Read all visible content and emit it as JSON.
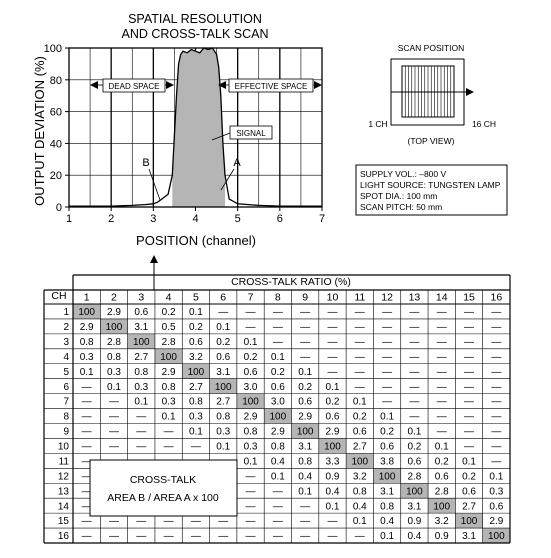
{
  "chart_data": [
    {
      "type": "line",
      "title": "SPATIAL RESOLUTION",
      "subtitle": "AND CROSS-TALK SCAN",
      "xlabel": "POSITION (channel)",
      "ylabel": "OUTPUT DEVIATION (%)",
      "xlim": [
        1,
        7
      ],
      "ylim": [
        0,
        100
      ],
      "x_ticks": [
        "1",
        "2",
        "3",
        "4",
        "5",
        "6",
        "7"
      ],
      "y_ticks": [
        "0",
        "20",
        "40",
        "60",
        "80",
        "100"
      ],
      "grid": true,
      "series": [
        {
          "x": [
            1.0,
            1.5,
            2.0,
            2.5,
            2.8,
            3.0,
            3.1,
            3.2,
            3.35,
            3.45,
            3.55,
            3.6,
            3.65,
            3.7,
            3.8,
            3.9,
            4.0,
            4.1,
            4.2,
            4.3,
            4.4,
            4.5,
            4.55,
            4.6,
            4.65,
            4.7,
            4.8,
            5.0,
            5.5,
            6.0,
            6.5,
            7.0
          ],
          "y": [
            0.5,
            0.5,
            0.5,
            1,
            1.5,
            2,
            3,
            5,
            8,
            20,
            70,
            90,
            96,
            98,
            97,
            99,
            98,
            97,
            100,
            99,
            100,
            96,
            88,
            70,
            40,
            20,
            5,
            2,
            1,
            0.5,
            0.5,
            0.5
          ]
        }
      ],
      "annotations": {
        "dead_space": "DEAD SPACE",
        "effective_space": "EFFECTIVE SPACE",
        "signal": "SIGNAL",
        "area_a": "A",
        "area_b": "B"
      }
    },
    {
      "type": "table",
      "title": "CROSS-TALK RATIO (%)",
      "row_header": "CH",
      "columns": [
        "1",
        "2",
        "3",
        "4",
        "5",
        "6",
        "7",
        "8",
        "9",
        "10",
        "11",
        "12",
        "13",
        "14",
        "15",
        "16"
      ],
      "rows": [
        [
          "1",
          "100",
          "2.9",
          "0.6",
          "0.2",
          "0.1",
          "—",
          "—",
          "—",
          "—",
          "—",
          "—",
          "—",
          "—",
          "—",
          "—",
          "—"
        ],
        [
          "2",
          "2.9",
          "100",
          "3.1",
          "0.5",
          "0.2",
          "0.1",
          "—",
          "—",
          "—",
          "—",
          "—",
          "—",
          "—",
          "—",
          "—",
          "—"
        ],
        [
          "3",
          "0.8",
          "2.8",
          "100",
          "2.8",
          "0.6",
          "0.2",
          "0.1",
          "—",
          "—",
          "—",
          "—",
          "—",
          "—",
          "—",
          "—",
          "—"
        ],
        [
          "4",
          "0.3",
          "0.8",
          "2.7",
          "100",
          "3.2",
          "0.6",
          "0.2",
          "0.1",
          "—",
          "—",
          "—",
          "—",
          "—",
          "—",
          "—",
          "—"
        ],
        [
          "5",
          "0.1",
          "0.3",
          "0.8",
          "2.9",
          "100",
          "3.1",
          "0.6",
          "0.2",
          "0.1",
          "—",
          "—",
          "—",
          "—",
          "—",
          "—",
          "—"
        ],
        [
          "6",
          "—",
          "0.1",
          "0.3",
          "0.8",
          "2.7",
          "100",
          "3.0",
          "0.6",
          "0.2",
          "0.1",
          "—",
          "—",
          "—",
          "—",
          "—",
          "—"
        ],
        [
          "7",
          "—",
          "—",
          "0.1",
          "0.3",
          "0.8",
          "2.7",
          "100",
          "3.0",
          "0.6",
          "0.2",
          "0.1",
          "—",
          "—",
          "—",
          "—",
          "—"
        ],
        [
          "8",
          "—",
          "—",
          "—",
          "0.1",
          "0.3",
          "0.8",
          "2.9",
          "100",
          "2.9",
          "0.6",
          "0.2",
          "0.1",
          "—",
          "—",
          "—",
          "—"
        ],
        [
          "9",
          "—",
          "—",
          "—",
          "—",
          "0.1",
          "0.3",
          "0.8",
          "2.9",
          "100",
          "2.9",
          "0.6",
          "0.2",
          "0.1",
          "—",
          "—",
          "—"
        ],
        [
          "10",
          "—",
          "—",
          "—",
          "—",
          "—",
          "0.1",
          "0.3",
          "0.8",
          "3.1",
          "100",
          "2.7",
          "0.6",
          "0.2",
          "0.1",
          "—",
          "—"
        ],
        [
          "11",
          "—",
          "—",
          "—",
          "—",
          "—",
          "—",
          "0.1",
          "0.4",
          "0.8",
          "3.3",
          "100",
          "3.8",
          "0.6",
          "0.2",
          "0.1",
          "—"
        ],
        [
          "12",
          "—",
          "—",
          "—",
          "—",
          "—",
          "—",
          "—",
          "0.1",
          "0.4",
          "0.9",
          "3.2",
          "100",
          "2.8",
          "0.6",
          "0.2",
          "0.1"
        ],
        [
          "13",
          "—",
          "—",
          "—",
          "—",
          "—",
          "—",
          "—",
          "—",
          "0.1",
          "0.4",
          "0.8",
          "3.1",
          "100",
          "2.8",
          "0.6",
          "0.3"
        ],
        [
          "14",
          "—",
          "—",
          "—",
          "—",
          "—",
          "—",
          "—",
          "—",
          "—",
          "0.1",
          "0.4",
          "0.8",
          "3.1",
          "100",
          "2.7",
          "0.6"
        ],
        [
          "15",
          "—",
          "—",
          "—",
          "—",
          "—",
          "—",
          "—",
          "—",
          "—",
          "—",
          "0.1",
          "0.4",
          "0.9",
          "3.2",
          "100",
          "2.9"
        ],
        [
          "16",
          "—",
          "—",
          "—",
          "—",
          "—",
          "—",
          "—",
          "—",
          "—",
          "—",
          "—",
          "0.1",
          "0.4",
          "0.9",
          "3.1",
          "100"
        ]
      ],
      "formula_lines": [
        "CROSS-TALK",
        "AREA B / AREA A x 100"
      ]
    }
  ],
  "scan_diagram": {
    "title": "SCAN POSITION",
    "left_label": "1 CH",
    "right_label": "16 CH",
    "view_label": "(TOP VIEW)"
  },
  "specs": [
    "SUPPLY VOL.: –800 V",
    "LIGHT SOURCE: TUNGSTEN LAMP",
    "SPOT DIA.: 100 mm",
    "SCAN PITCH: 50 mm"
  ],
  "colors": {
    "fill": "#b5b5b5",
    "diagonal": "#b5b5b5",
    "line": "#000000"
  }
}
